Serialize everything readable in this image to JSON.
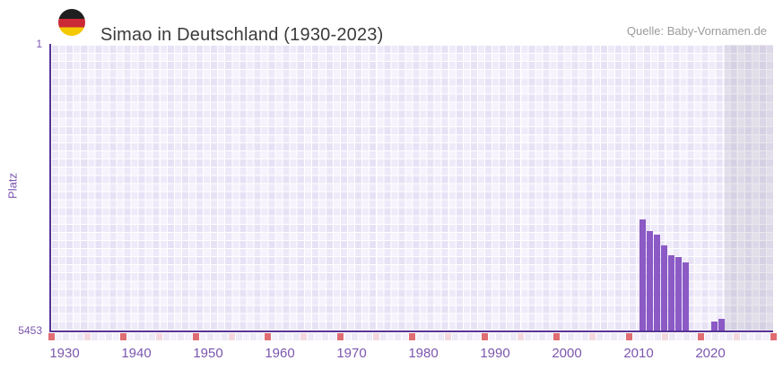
{
  "header": {
    "title": "Simao in Deutschland (1930-2023)",
    "source": "Quelle: Baby-Vornamen.de",
    "flag_icon": "germany-flag-circle-icon"
  },
  "chart_data": {
    "type": "bar",
    "title": "Simao in Deutschland (1930-2023)",
    "xlabel": "",
    "ylabel": "Platz",
    "y_axis": {
      "top_label": "1",
      "bottom_label": "5453",
      "min": 1,
      "max": 5453,
      "inverted": true
    },
    "x_axis": {
      "start_year": 1930,
      "end_year": 2030,
      "tick_labels": [
        "1930",
        "1940",
        "1950",
        "1960",
        "1970",
        "1980",
        "1990",
        "2000",
        "2010",
        "2020"
      ],
      "decade_marker_years": [
        1930,
        1940,
        1950,
        1960,
        1970,
        1980,
        1990,
        2000,
        2010,
        2020,
        2030
      ],
      "half_decade_marker_years": [
        1935,
        1945,
        1955,
        1965,
        1975,
        1985,
        1995,
        2005,
        2015,
        2025
      ]
    },
    "series": [
      {
        "name": "Platz",
        "points": [
          {
            "year": 2011,
            "rank": 3340
          },
          {
            "year": 2012,
            "rank": 3560
          },
          {
            "year": 2013,
            "rank": 3620
          },
          {
            "year": 2014,
            "rank": 3830
          },
          {
            "year": 2015,
            "rank": 4010
          },
          {
            "year": 2016,
            "rank": 4050
          },
          {
            "year": 2017,
            "rank": 4160
          },
          {
            "year": 2021,
            "rank": 5290
          },
          {
            "year": 2022,
            "rank": 5230
          }
        ]
      }
    ],
    "no_data_region": {
      "from_year": 2023,
      "to_year": 2030
    },
    "grid": "plaid-checker",
    "legend": "none"
  },
  "colors": {
    "bar": "#8b5ac5",
    "axis_line": "#563397",
    "axis_label": "#7c56ae",
    "decade_marker": "#df6d73",
    "half_decade_marker": "#f2d8de",
    "strip_cell_even": "#ede8f6",
    "strip_cell_odd": "#f4f0fb",
    "title_text": "#3b3b3b",
    "source_text": "#9b9b9b",
    "no_data_overlay": "rgba(124,117,140,0.16)"
  }
}
